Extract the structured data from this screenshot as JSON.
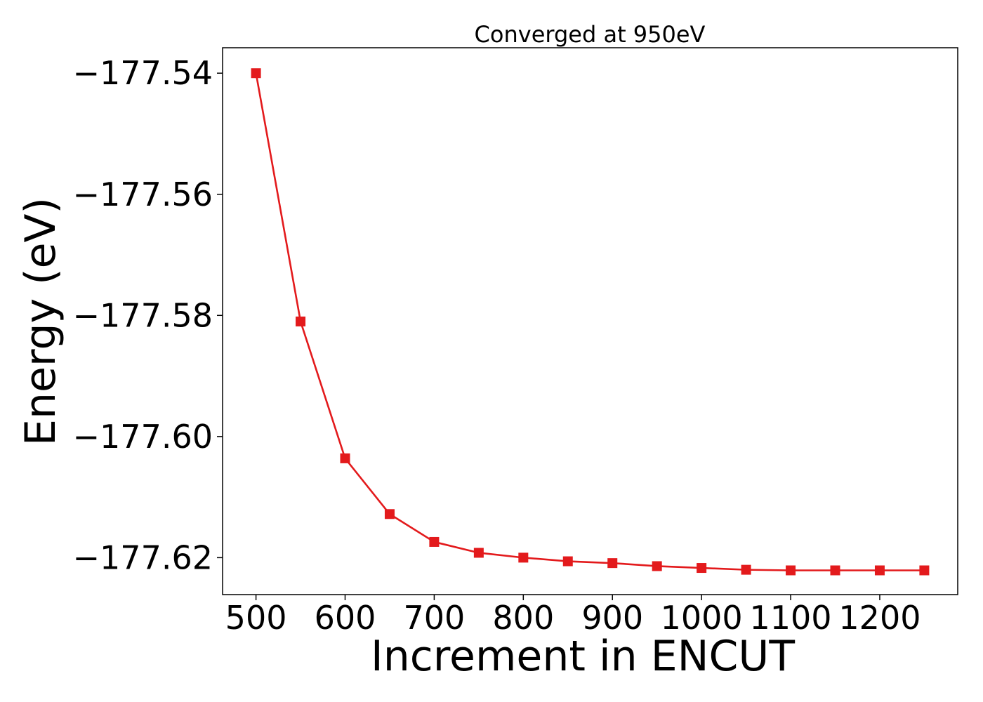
{
  "chart_data": {
    "type": "line",
    "title": "Converged at 950eV",
    "xlabel": "Increment in ENCUT",
    "ylabel": "Energy (eV)",
    "x": [
      500,
      550,
      600,
      650,
      700,
      750,
      800,
      850,
      900,
      950,
      1000,
      1050,
      1100,
      1150,
      1200,
      1250
    ],
    "series": [
      {
        "values": [
          -177.54,
          -177.581,
          -177.6036,
          -177.6128,
          -177.6174,
          -177.6192,
          -177.62,
          -177.6206,
          -177.6209,
          -177.6214,
          -177.6217,
          -177.622,
          -177.6221,
          -177.6221,
          -177.6221,
          -177.6221
        ],
        "color": "#e31a1c",
        "marker": "square"
      }
    ],
    "xticks": [
      500,
      600,
      700,
      800,
      900,
      1000,
      1100,
      1200
    ],
    "xtick_labels": [
      "500",
      "600",
      "700",
      "800",
      "900",
      "1000",
      "1100",
      "1200"
    ],
    "yticks": [
      -177.54,
      -177.56,
      -177.58,
      -177.6,
      -177.62
    ],
    "ytick_labels": [
      "−177.54",
      "−177.56",
      "−177.58",
      "−177.60",
      "−177.62"
    ],
    "xlim": [
      462.5,
      1287.5
    ],
    "ylim": [
      -177.6261,
      -177.5358
    ],
    "grid": false,
    "legend": "none"
  }
}
